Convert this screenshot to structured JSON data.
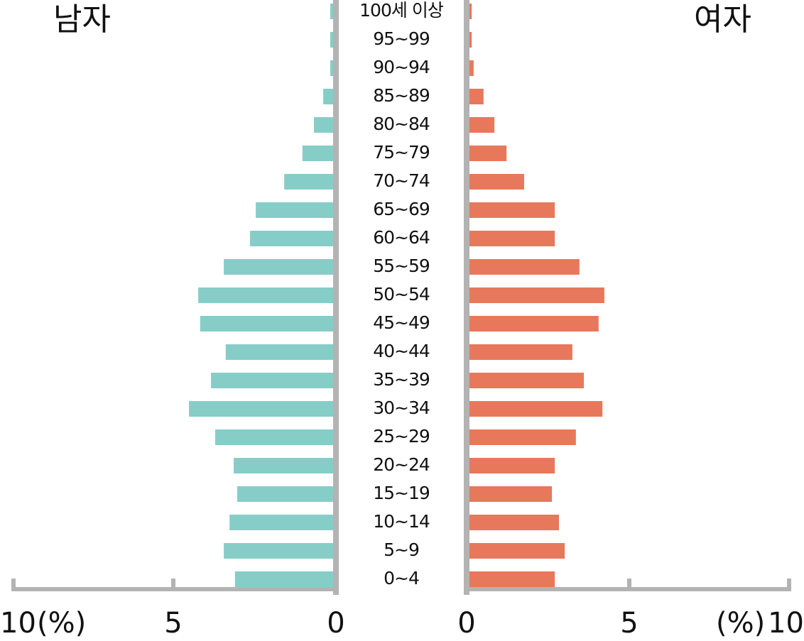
{
  "chart_data": {
    "type": "pyramid",
    "categories": [
      "0~4",
      "5~9",
      "10~14",
      "15~19",
      "20~24",
      "25~29",
      "30~34",
      "35~39",
      "40~44",
      "45~49",
      "50~54",
      "55~59",
      "60~64",
      "65~69",
      "70~74",
      "75~79",
      "80~84",
      "85~89",
      "90~94",
      "95~99",
      "100세 이상"
    ],
    "series": [
      {
        "name": "남자",
        "color": "#86cdc8",
        "values": [
          3.07,
          3.42,
          3.24,
          3.0,
          3.11,
          3.69,
          4.51,
          3.82,
          3.36,
          4.16,
          4.22,
          3.42,
          2.6,
          2.42,
          1.53,
          0.96,
          0.6,
          0.31,
          0.09,
          0.09,
          0.09
        ]
      },
      {
        "name": "여자",
        "color": "#e8785c",
        "values": [
          2.67,
          2.98,
          2.8,
          2.58,
          2.67,
          3.33,
          4.16,
          3.58,
          3.22,
          4.04,
          4.22,
          3.44,
          2.67,
          2.67,
          1.71,
          1.16,
          0.78,
          0.44,
          0.13,
          0.07,
          0.07
        ]
      }
    ],
    "xlim": [
      0,
      10
    ],
    "xticks": [
      0,
      5,
      10
    ],
    "unit": "(%)"
  }
}
